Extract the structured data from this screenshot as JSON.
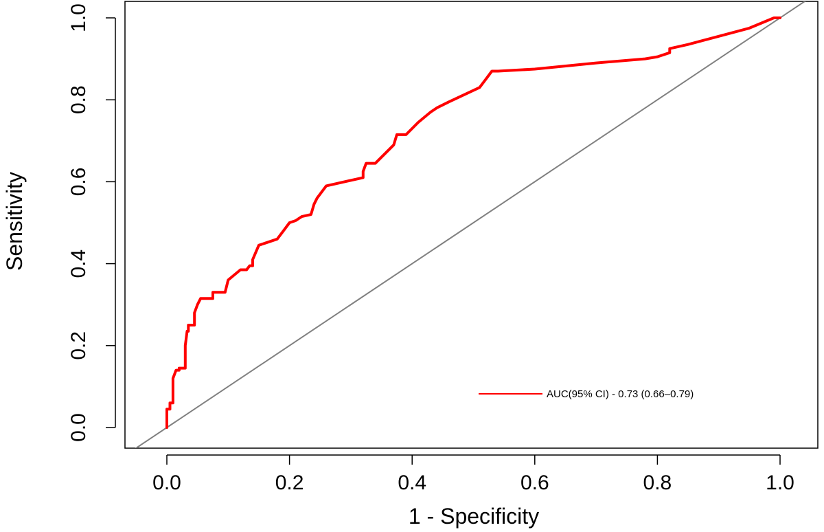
{
  "chart_data": {
    "type": "line",
    "xlabel": "1 - Specificity",
    "ylabel": "Sensitivity",
    "xlim": [
      0,
      1
    ],
    "ylim": [
      0,
      1
    ],
    "x_ticks": [
      "0.0",
      "0.2",
      "0.4",
      "0.6",
      "0.8",
      "1.0"
    ],
    "y_ticks": [
      "0.0",
      "0.2",
      "0.4",
      "0.6",
      "0.8",
      "1.0"
    ],
    "grid": false,
    "legend": {
      "position": "bottom-right",
      "entries": [
        "AUC(95% CI) - 0.73 (0.66–0.79)"
      ]
    },
    "reference_line": {
      "from": [
        0,
        0
      ],
      "to": [
        1,
        1
      ],
      "color": "#808080"
    },
    "series": [
      {
        "name": "AUC(95% CI) - 0.73 (0.66–0.79)",
        "color": "#ff0000",
        "x": [
          0.0,
          0.0,
          0.005,
          0.005,
          0.01,
          0.01,
          0.015,
          0.02,
          0.02,
          0.03,
          0.03,
          0.033,
          0.035,
          0.035,
          0.045,
          0.045,
          0.05,
          0.055,
          0.06,
          0.075,
          0.075,
          0.095,
          0.1,
          0.12,
          0.13,
          0.135,
          0.14,
          0.14,
          0.15,
          0.16,
          0.18,
          0.19,
          0.2,
          0.21,
          0.22,
          0.235,
          0.24,
          0.245,
          0.255,
          0.26,
          0.32,
          0.32,
          0.325,
          0.34,
          0.37,
          0.375,
          0.39,
          0.41,
          0.43,
          0.44,
          0.46,
          0.51,
          0.52,
          0.53,
          0.54,
          0.6,
          0.7,
          0.78,
          0.8,
          0.82,
          0.82,
          0.85,
          0.9,
          0.95,
          0.99,
          1.0
        ],
        "y": [
          0.0,
          0.045,
          0.045,
          0.06,
          0.06,
          0.12,
          0.14,
          0.14,
          0.145,
          0.145,
          0.2,
          0.235,
          0.235,
          0.25,
          0.25,
          0.28,
          0.3,
          0.315,
          0.315,
          0.315,
          0.33,
          0.33,
          0.36,
          0.385,
          0.385,
          0.395,
          0.395,
          0.41,
          0.445,
          0.45,
          0.46,
          0.48,
          0.5,
          0.505,
          0.515,
          0.52,
          0.545,
          0.56,
          0.58,
          0.59,
          0.61,
          0.625,
          0.645,
          0.645,
          0.69,
          0.715,
          0.715,
          0.745,
          0.77,
          0.78,
          0.795,
          0.83,
          0.85,
          0.87,
          0.87,
          0.875,
          0.89,
          0.9,
          0.905,
          0.915,
          0.925,
          0.935,
          0.955,
          0.975,
          1.0,
          1.0
        ]
      }
    ]
  }
}
